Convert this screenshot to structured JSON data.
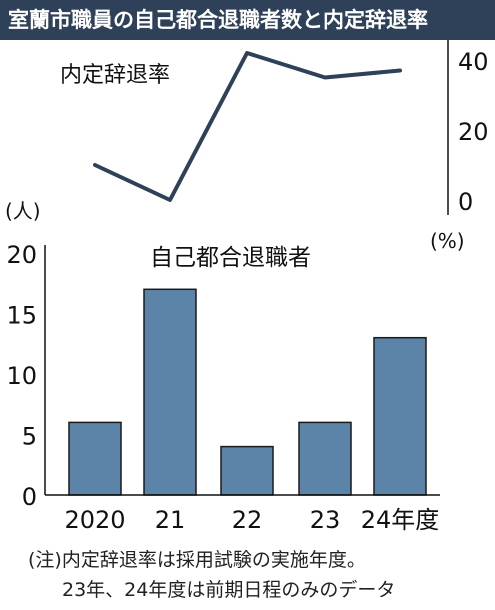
{
  "title": "室蘭市職員の自己都合退職者数と内定辞退率",
  "note_line1": "(注)内定辞退率は採用試験の実施年度。",
  "note_line2": "23年、24年度は前期日程のみのデータ",
  "chart_data": [
    {
      "type": "line",
      "name": "内定辞退率",
      "unit": "(%)",
      "categories": [
        "2020",
        "21",
        "22",
        "23",
        "24年度"
      ],
      "values": [
        10,
        0,
        42,
        35,
        37
      ],
      "yticks": [
        0,
        20,
        40
      ],
      "ylim": [
        0,
        40
      ],
      "color": "#2f4159"
    },
    {
      "type": "bar",
      "name": "自己都合退職者",
      "unit": "(人)",
      "categories": [
        "2020",
        "21",
        "22",
        "23",
        "24年度"
      ],
      "values": [
        6,
        17,
        4,
        6,
        13
      ],
      "yticks": [
        0,
        5,
        10,
        15,
        20
      ],
      "ylim": [
        0,
        20
      ],
      "color": "#5b84a8"
    }
  ]
}
